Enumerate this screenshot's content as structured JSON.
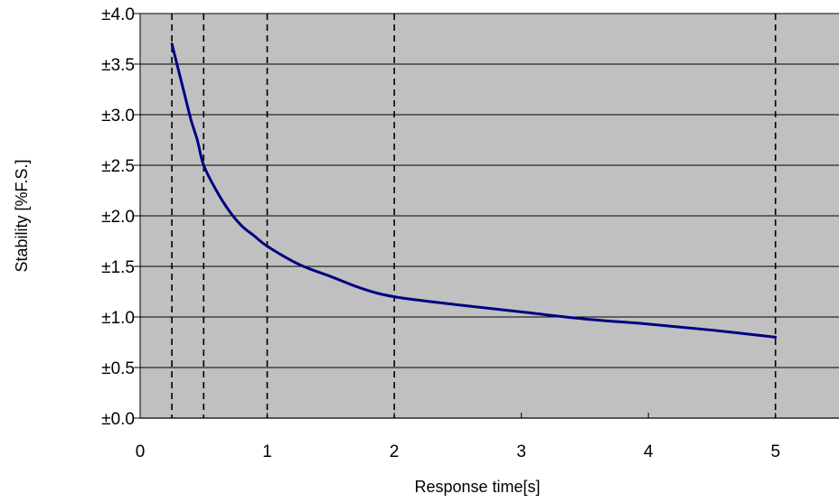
{
  "chart_data": {
    "type": "line",
    "title": "",
    "xlabel": "Response time[s]",
    "ylabel": "Stability [%F.S.]",
    "xlim": [
      0,
      5.5
    ],
    "ylim": [
      0,
      4.0
    ],
    "x_ticks": [
      0,
      1,
      2,
      3,
      4,
      5
    ],
    "x_tick_labels": [
      "0",
      "1",
      "2",
      "3",
      "4",
      "5"
    ],
    "y_ticks": [
      0.0,
      0.5,
      1.0,
      1.5,
      2.0,
      2.5,
      3.0,
      3.5,
      4.0
    ],
    "y_tick_labels": [
      "±0.0",
      "±0.5",
      "±1.0",
      "±1.5",
      "±2.0",
      "±2.5",
      "±3.0",
      "±3.5",
      "±4.0"
    ],
    "grid": "horizontal",
    "legend": "none",
    "plot_background": "#c0c0c0",
    "reference_lines_x": [
      0.25,
      0.5,
      1,
      2,
      5
    ],
    "series": [
      {
        "color": "#000080",
        "x": [
          0.25,
          0.3,
          0.35,
          0.4,
          0.45,
          0.5,
          0.6,
          0.7,
          0.8,
          0.9,
          1.0,
          1.25,
          1.5,
          1.75,
          2.0,
          2.5,
          3.0,
          3.5,
          4.0,
          4.5,
          5.0
        ],
        "values": [
          3.7,
          3.45,
          3.2,
          2.95,
          2.75,
          2.5,
          2.25,
          2.05,
          1.9,
          1.8,
          1.7,
          1.52,
          1.4,
          1.28,
          1.2,
          1.12,
          1.05,
          0.98,
          0.93,
          0.87,
          0.8
        ]
      }
    ]
  }
}
